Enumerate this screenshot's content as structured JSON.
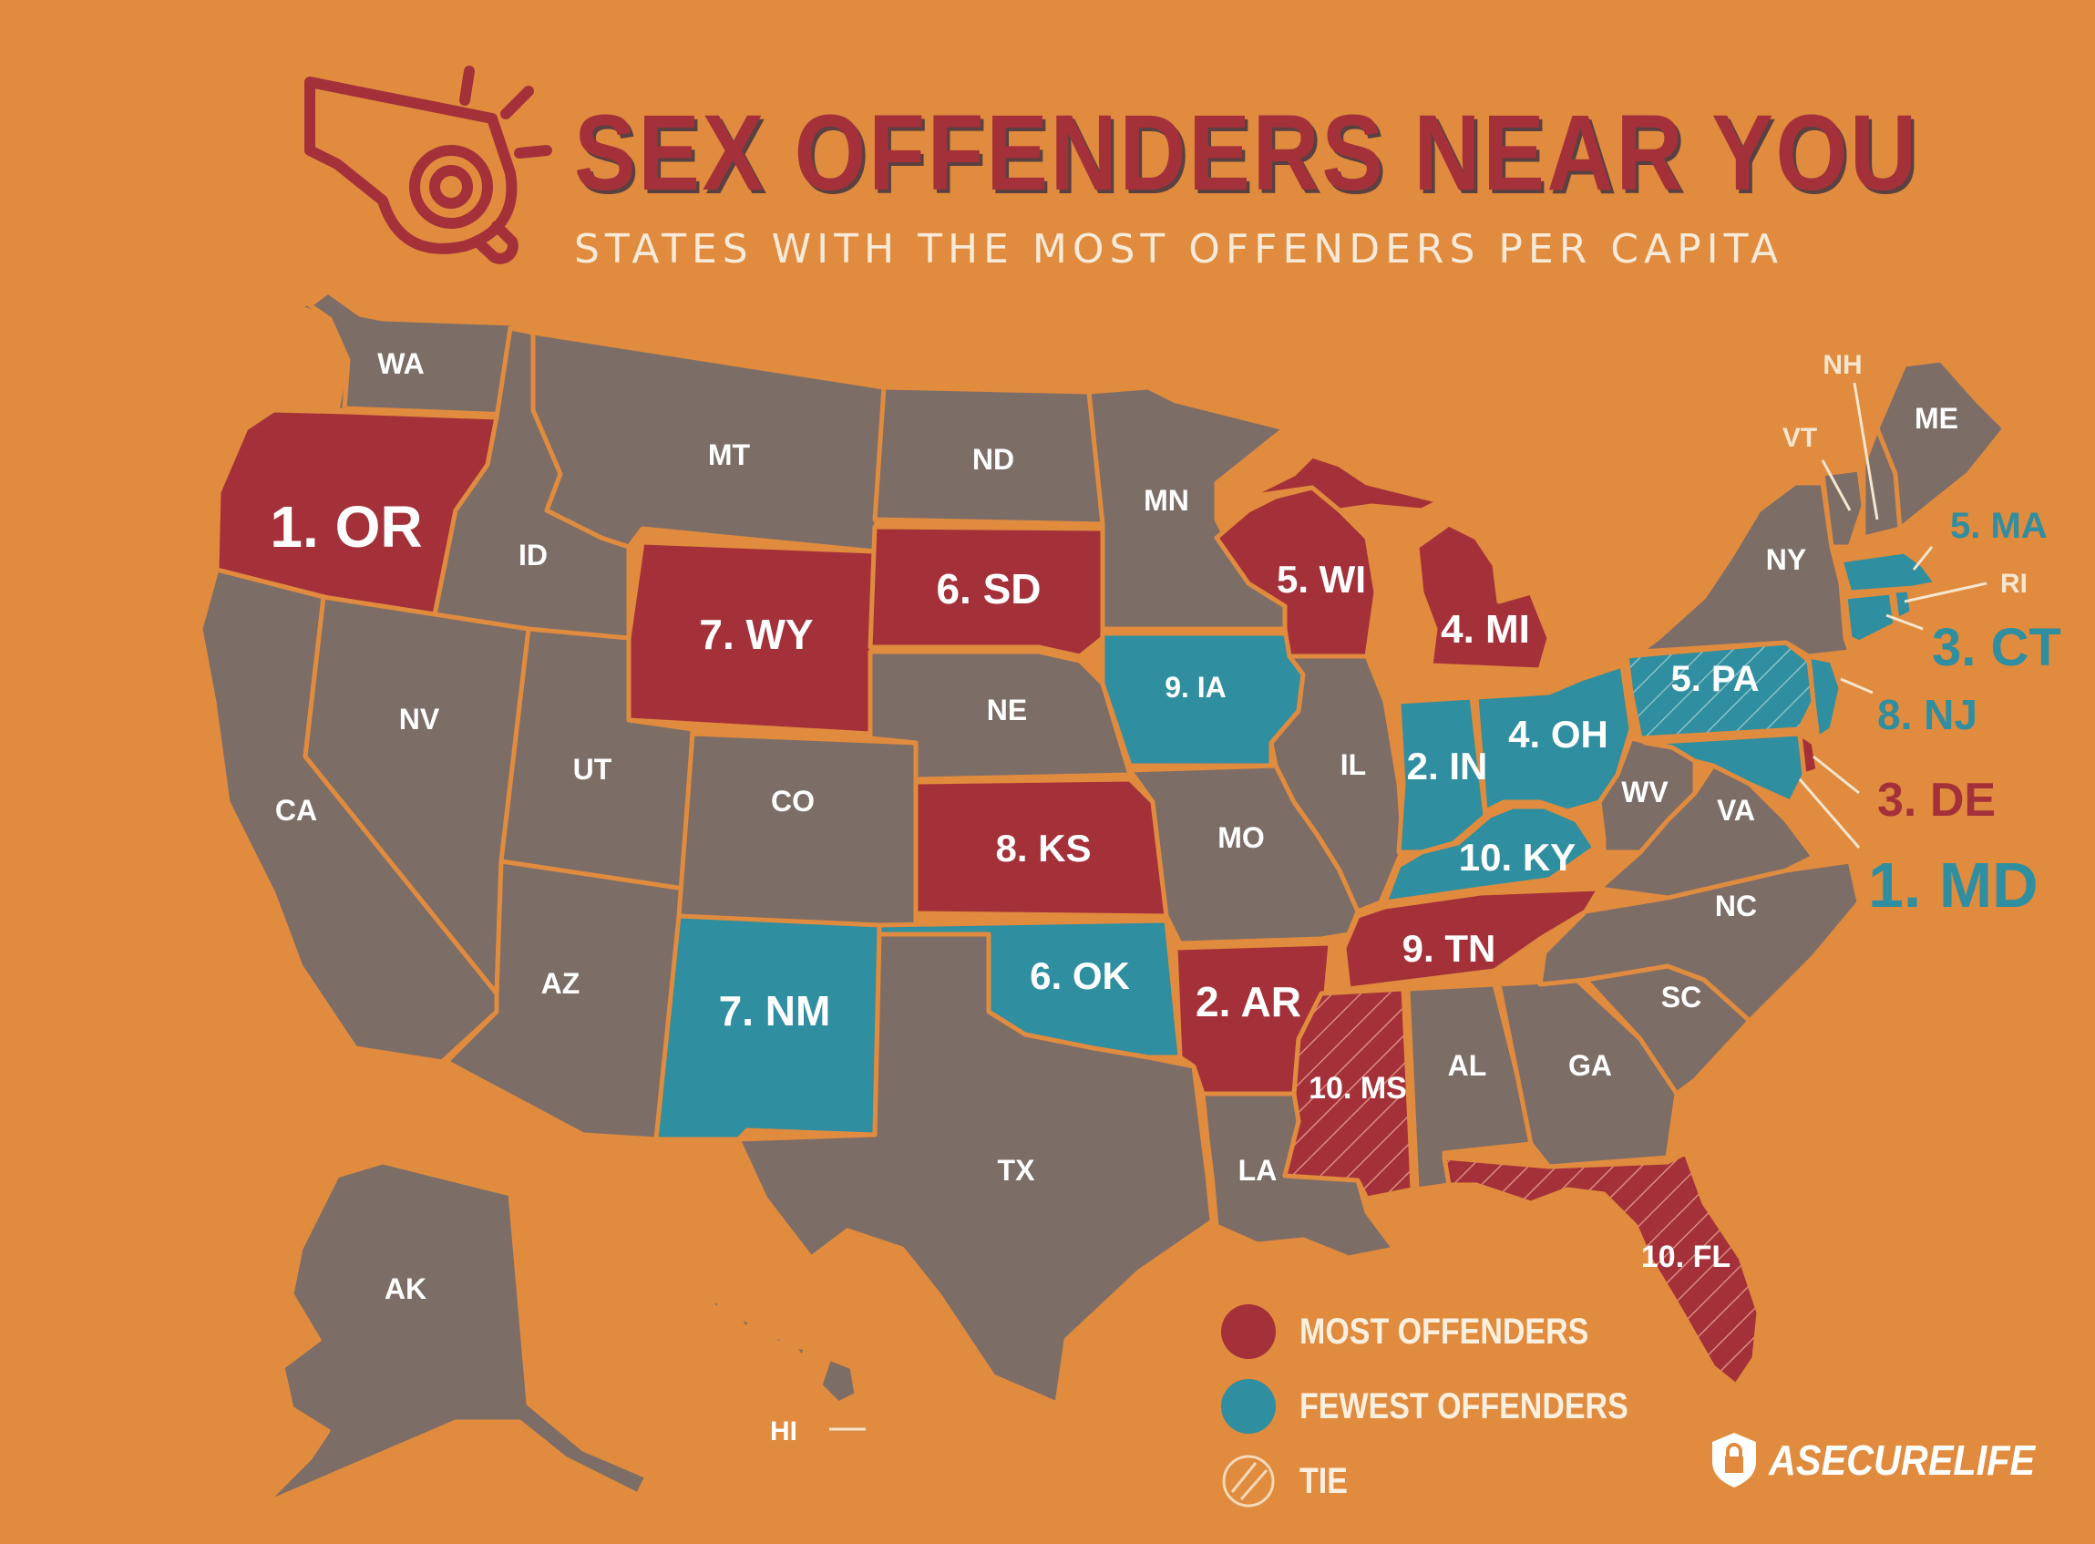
{
  "header": {
    "title": "SEX OFFENDERS NEAR YOU",
    "subtitle": "STATES WITH THE MOST OFFENDERS PER CAPITA"
  },
  "colors": {
    "background": "#e08b3e",
    "neutral_state": "#7d6d67",
    "most": "#a4313a",
    "fewest": "#2f8e9f",
    "border": "#e08b3e"
  },
  "icons": {
    "whistle": "whistle-icon",
    "brand": "lock-shield-icon"
  },
  "labels": {
    "WA": "WA",
    "OR": "1. OR",
    "CA": "CA",
    "ID": "ID",
    "NV": "NV",
    "MT": "MT",
    "WY": "7. WY",
    "UT": "UT",
    "AZ": "AZ",
    "CO": "CO",
    "NM": "7. NM",
    "ND": "ND",
    "SD": "6. SD",
    "NE": "NE",
    "KS": "8. KS",
    "OK": "6. OK",
    "TX": "TX",
    "MN": "MN",
    "IA": "9. IA",
    "MO": "MO",
    "AR": "2. AR",
    "LA": "LA",
    "WI": "5. WI",
    "IL": "IL",
    "MS": "10. MS",
    "MI": "4. MI",
    "IN": "2. IN",
    "KY": "10. KY",
    "TN": "9. TN",
    "AL": "AL",
    "OH": "4. OH",
    "WV": "WV",
    "VA": "VA",
    "NC": "NC",
    "SC": "SC",
    "GA": "GA",
    "FL": "10. FL",
    "PA": "5. PA",
    "NY": "NY",
    "VT": "VT",
    "NH": "NH",
    "ME": "ME",
    "MA": "5. MA",
    "RI": "RI",
    "CT": "3. CT",
    "NJ": "8. NJ",
    "DE": "3. DE",
    "MD": "1. MD",
    "AK": "AK",
    "HI": "HI"
  },
  "legend": {
    "most": "MOST OFFENDERS",
    "fewest": "FEWEST OFFENDERS",
    "tie": "TIE"
  },
  "brand": {
    "name": "ASECURELIFE"
  }
}
